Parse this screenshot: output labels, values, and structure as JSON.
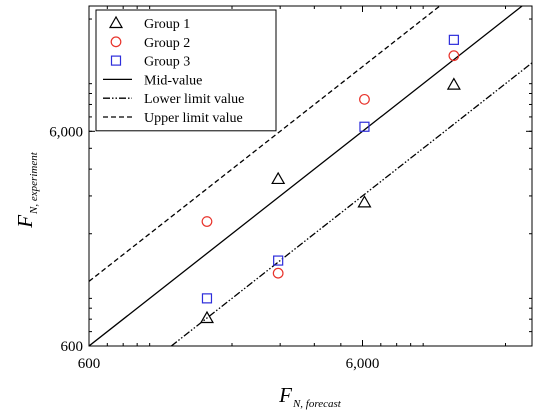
{
  "chart_data": {
    "type": "scatter",
    "title": "",
    "xlabel": {
      "main": "F",
      "subscript": "N,  forecast"
    },
    "ylabel": {
      "main": "F",
      "subscript": "N,  experiment"
    },
    "xscale": "log",
    "yscale": "log",
    "xlim": [
      600,
      25000
    ],
    "ylim": [
      600,
      23000
    ],
    "xticks": [
      {
        "value": 600,
        "label": "600"
      },
      {
        "value": 6000,
        "label": "6,000"
      }
    ],
    "yticks": [
      {
        "value": 600,
        "label": "600"
      },
      {
        "value": 6000,
        "label": "6,000"
      }
    ],
    "grid": false,
    "legend": "top-left",
    "series": [
      {
        "name": "Group 1",
        "kind": "points",
        "marker": "triangle",
        "color": "#000000",
        "points": [
          [
            1620,
            810
          ],
          [
            2950,
            3600
          ],
          [
            6100,
            2800
          ],
          [
            12950,
            9900
          ]
        ]
      },
      {
        "name": "Group 2",
        "kind": "points",
        "marker": "circle",
        "color": "#e8332b",
        "points": [
          [
            1620,
            2280
          ],
          [
            2950,
            1310
          ],
          [
            6100,
            8450
          ],
          [
            12950,
            13500
          ]
        ]
      },
      {
        "name": "Group 3",
        "kind": "points",
        "marker": "square",
        "color": "#2d2ddb",
        "points": [
          [
            1620,
            1000
          ],
          [
            2950,
            1500
          ],
          [
            6100,
            6300
          ],
          [
            12950,
            16000
          ]
        ]
      },
      {
        "name": "Mid-value",
        "kind": "line",
        "style": "solid",
        "color": "#000000",
        "points": [
          [
            600,
            600
          ],
          [
            25000,
            25000
          ]
        ]
      },
      {
        "name": "Lower limit value",
        "kind": "line",
        "style": "dash-dot-dot",
        "color": "#000000",
        "points": [
          [
            1200,
            600
          ],
          [
            25000,
            12500
          ]
        ]
      },
      {
        "name": "Upper limit value",
        "kind": "line",
        "style": "dashed",
        "color": "#000000",
        "points": [
          [
            600,
            1200
          ],
          [
            11500,
            23000
          ]
        ]
      }
    ]
  }
}
